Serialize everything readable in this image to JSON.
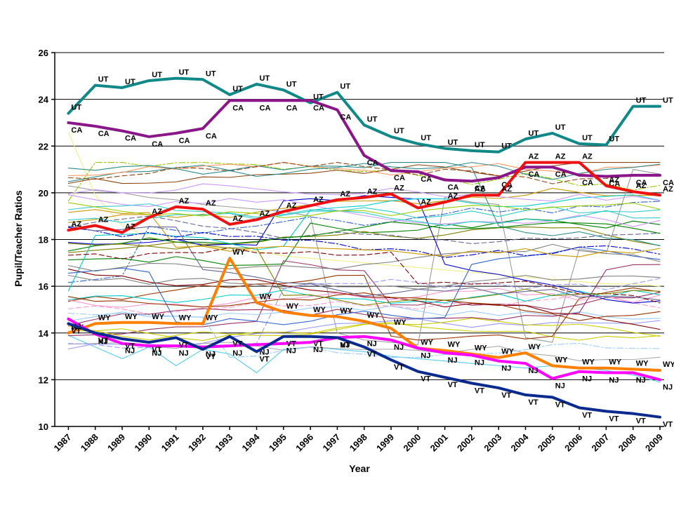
{
  "chart_data": {
    "type": "line",
    "title": "",
    "xlabel": "Year",
    "ylabel": "Pupil/Teacher Ratios",
    "x": [
      1987,
      1988,
      1989,
      1990,
      1991,
      1992,
      1993,
      1994,
      1995,
      1996,
      1997,
      1998,
      1999,
      2000,
      2001,
      2002,
      2003,
      2004,
      2005,
      2006,
      2007,
      2008,
      2009
    ],
    "ylim": [
      10,
      26
    ],
    "ytick_step": 2,
    "yticks": [
      10,
      12,
      14,
      16,
      18,
      20,
      22,
      24,
      26
    ],
    "grid": "horizontal",
    "legend": "none",
    "axis_color": "#000000",
    "label_every_point": true,
    "series": [
      {
        "name": "UT",
        "color": "#108888",
        "width": 4,
        "label_side": "above",
        "values": [
          23.4,
          24.6,
          24.5,
          24.8,
          24.9,
          24.85,
          24.2,
          24.65,
          24.4,
          23.85,
          24.3,
          22.9,
          22.4,
          22.1,
          21.9,
          21.8,
          21.75,
          22.3,
          22.55,
          22.1,
          22.05,
          23.7,
          23.7
        ]
      },
      {
        "name": "CA",
        "color": "#8A168A",
        "width": 4,
        "label_side": "below",
        "values": [
          23.0,
          22.85,
          22.65,
          22.4,
          22.55,
          22.75,
          23.95,
          23.95,
          23.95,
          23.95,
          23.55,
          21.6,
          20.95,
          20.9,
          20.55,
          20.5,
          20.65,
          21.1,
          21.1,
          20.75,
          20.7,
          20.75,
          20.75
        ]
      },
      {
        "name": "AZ",
        "color": "#EE1111",
        "width": 4,
        "label_side": "above",
        "values": [
          18.4,
          18.6,
          18.3,
          18.95,
          19.4,
          19.3,
          18.65,
          18.85,
          19.2,
          19.45,
          19.7,
          19.8,
          19.95,
          19.35,
          19.6,
          19.9,
          19.9,
          21.3,
          21.3,
          21.3,
          20.3,
          20.05,
          19.9
        ]
      },
      {
        "name": "WY",
        "color": "#FF7F00",
        "width": 4,
        "label_side": "above",
        "values": [
          14.0,
          14.4,
          14.45,
          14.45,
          14.4,
          14.4,
          17.2,
          15.3,
          14.9,
          14.75,
          14.7,
          14.5,
          14.2,
          13.35,
          13.25,
          13.1,
          12.95,
          13.15,
          12.6,
          12.5,
          12.5,
          12.45,
          12.4
        ]
      },
      {
        "name": "NJ",
        "color": "#FF00FF",
        "width": 4,
        "label_side": "below",
        "values": [
          14.6,
          13.95,
          13.55,
          13.45,
          13.45,
          13.4,
          13.45,
          13.5,
          13.55,
          13.6,
          13.8,
          13.85,
          13.7,
          13.35,
          13.15,
          13.05,
          12.8,
          12.7,
          12.05,
          12.35,
          12.3,
          12.3,
          12.0
        ]
      },
      {
        "name": "VT",
        "color": "#0B2A8E",
        "width": 4,
        "label_side": "below",
        "values": [
          14.4,
          14.0,
          13.75,
          13.6,
          13.8,
          13.3,
          13.85,
          13.2,
          13.85,
          13.85,
          13.8,
          13.4,
          12.85,
          12.35,
          12.1,
          11.85,
          11.65,
          11.35,
          11.25,
          10.8,
          10.65,
          10.55,
          10.4
        ]
      }
    ],
    "background_series": {
      "description": "unlabeled thin lines for the other states, spanning roughly 12-21 pupils/teacher",
      "count": 42,
      "seed": 20090,
      "value_range": [
        11.7,
        21.3
      ],
      "line_width": 1.1,
      "dash_pattern_a": "7 4",
      "dash_pattern_b": "9 3 2 3",
      "palette": [
        "#9999FF",
        "#993366",
        "#CCCC00",
        "#99CCFF",
        "#FF99CC",
        "#993300",
        "#00CCCC",
        "#3366CC",
        "#808080",
        "#800000",
        "#008000",
        "#808000",
        "#0000CC",
        "#666699",
        "#CC9900",
        "#33CCCC",
        "#99CC00",
        "#CC99FF",
        "#8B4513",
        "#2E8B8B",
        "#FF9966",
        "#AAAAAA"
      ],
      "accents": [
        {
          "color": "#EEEE88",
          "values": [
            22.6,
            19.9,
            18.6,
            18.1,
            17.9,
            17.7,
            17.6,
            17.5,
            17.3,
            17.2,
            17.1,
            17.0,
            16.9,
            16.8,
            16.7,
            16.6,
            16.5,
            16.4,
            16.3,
            16.2,
            16.1,
            16.1,
            16.0
          ]
        },
        {
          "color": "#9B9B9B",
          "values": [
            20.3,
            20.1,
            20.0,
            19.8,
            19.7,
            19.5,
            19.4,
            19.3,
            19.2,
            19.0,
            14.0,
            13.7,
            13.6,
            13.5,
            19.8,
            19.6,
            19.5,
            13.8,
            13.6,
            17.6,
            17.4,
            21.0,
            20.8
          ]
        },
        {
          "color": "#55CCEE",
          "values": [
            13.9,
            13.4,
            12.9,
            13.4,
            12.6,
            13.3,
            13.1,
            12.3,
            13.3,
            13.4,
            13.3,
            13.2,
            13.0,
            12.9,
            12.8,
            12.7,
            12.6,
            12.5,
            12.6,
            12.5,
            12.4,
            12.2,
            11.9
          ]
        }
      ]
    }
  }
}
